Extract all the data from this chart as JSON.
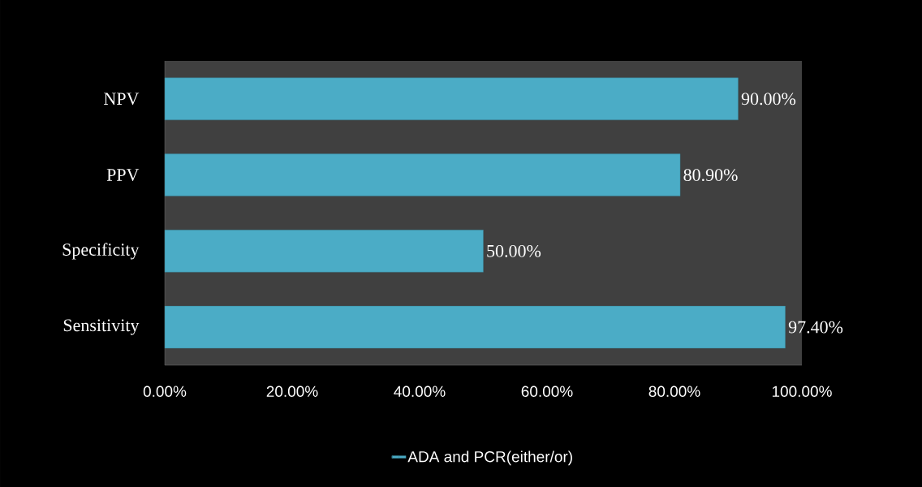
{
  "chart_data": {
    "type": "bar",
    "orientation": "horizontal",
    "categories": [
      "NPV",
      "PPV",
      "Specificity",
      "Sensitivity"
    ],
    "series": [
      {
        "name": "ADA and PCR(either/or)",
        "color": "#4bacc6",
        "values": [
          90.0,
          80.9,
          50.0,
          97.4
        ],
        "value_labels": [
          "90.00%",
          "80.90%",
          "50.00%",
          "97.40%"
        ]
      }
    ],
    "xlim": [
      0,
      100
    ],
    "xticks": [
      {
        "value": 0,
        "label": "0.00%"
      },
      {
        "value": 20,
        "label": "20.00%"
      },
      {
        "value": 40,
        "label": "40.00%"
      },
      {
        "value": 60,
        "label": "60.00%"
      },
      {
        "value": 80,
        "label": "80.00%"
      },
      {
        "value": 100,
        "label": "100.00%"
      }
    ],
    "grid": false,
    "legend": "bottom"
  }
}
